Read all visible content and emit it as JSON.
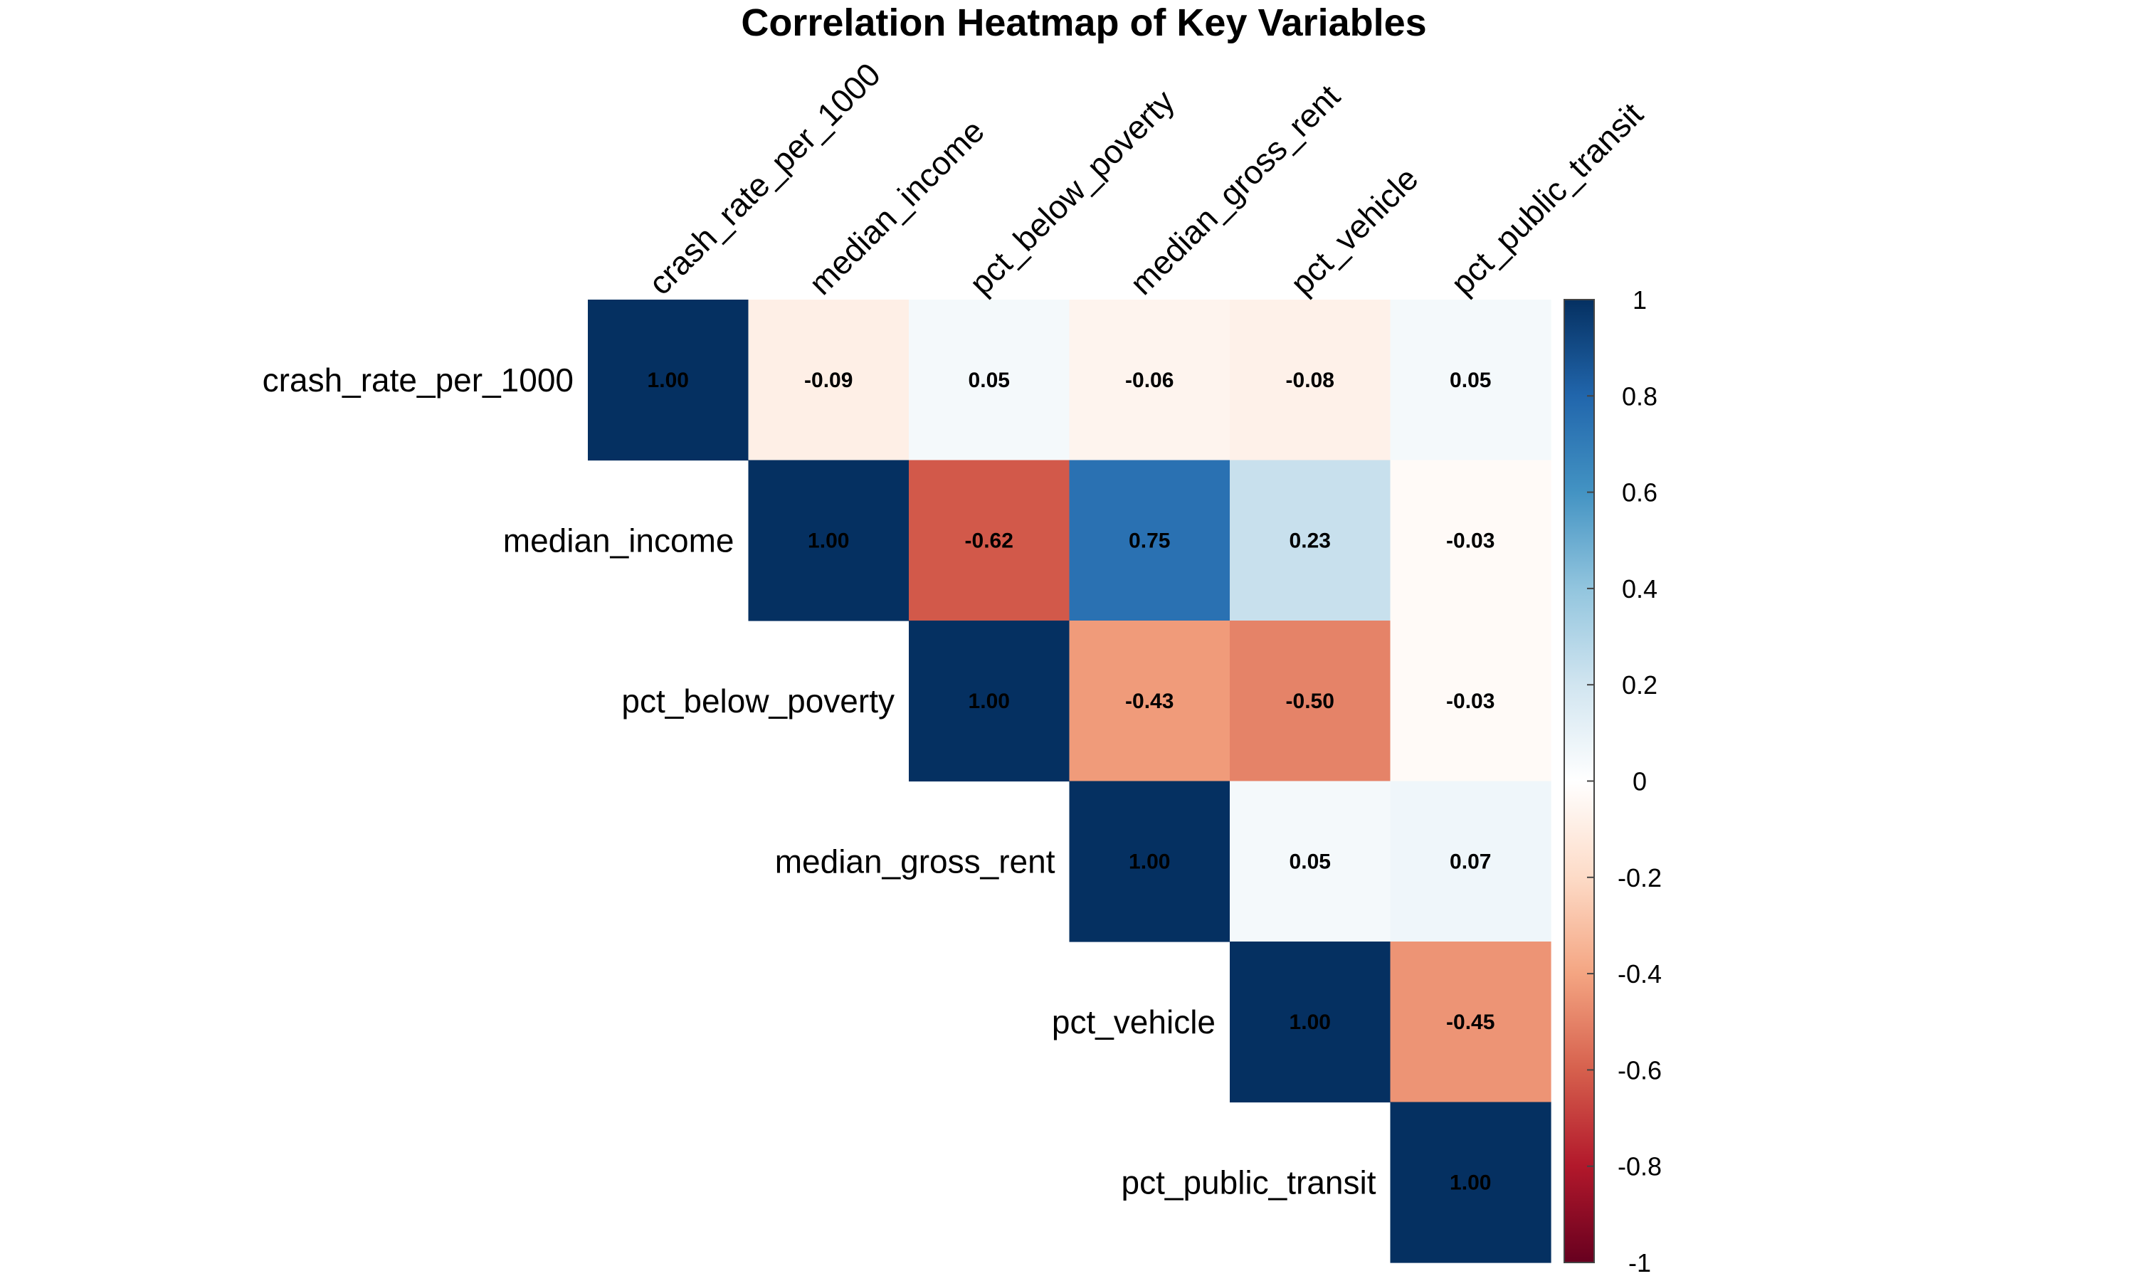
{
  "chart_data": {
    "type": "heatmap",
    "title": "Correlation Heatmap of Key Variables",
    "variables": [
      "crash_rate_per_1000",
      "median_income",
      "pct_below_poverty",
      "median_gross_rent",
      "pct_vehicle",
      "pct_public_transit"
    ],
    "layout": "upper-triangle",
    "matrix": [
      [
        1.0,
        -0.09,
        0.05,
        -0.06,
        -0.08,
        0.05
      ],
      [
        null,
        1.0,
        -0.62,
        0.75,
        0.23,
        -0.03
      ],
      [
        null,
        null,
        1.0,
        -0.43,
        -0.5,
        -0.03
      ],
      [
        null,
        null,
        null,
        1.0,
        0.05,
        0.07
      ],
      [
        null,
        null,
        null,
        null,
        1.0,
        -0.45
      ],
      [
        null,
        null,
        null,
        null,
        null,
        1.0
      ]
    ],
    "value_labels": [
      [
        "1.00",
        "-0.09",
        "0.05",
        "-0.06",
        "-0.08",
        "0.05"
      ],
      [
        "",
        "1.00",
        "-0.62",
        "0.75",
        "0.23",
        "-0.03"
      ],
      [
        "",
        "",
        "1.00",
        "-0.43",
        "-0.50",
        "-0.03"
      ],
      [
        "",
        "",
        "",
        "1.00",
        "0.05",
        "0.07"
      ],
      [
        "",
        "",
        "",
        "",
        "1.00",
        "-0.45"
      ],
      [
        "",
        "",
        "",
        "",
        "",
        "1.00"
      ]
    ],
    "colorbar": {
      "range": [
        -1,
        1
      ],
      "ticks": [
        "1",
        "0.8",
        "0.6",
        "0.4",
        "0.2",
        "0",
        "-0.2",
        "-0.4",
        "-0.6",
        "-0.8",
        "-1"
      ],
      "colors": [
        "#67001F",
        "#B2182B",
        "#D6604D",
        "#F4A582",
        "#FDDBC7",
        "#FFFFFF",
        "#D1E5F0",
        "#92C5DE",
        "#4393C3",
        "#2166AC",
        "#053061"
      ]
    },
    "legend": "right"
  }
}
